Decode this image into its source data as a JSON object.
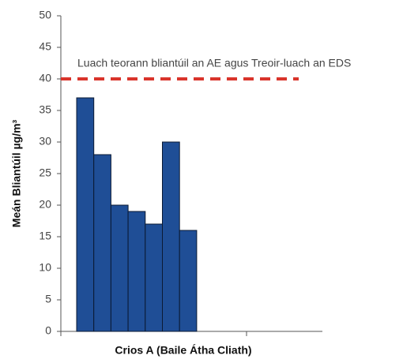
{
  "chart_data": {
    "type": "bar",
    "xlabel": "Crios A (Baile Átha Cliath)",
    "ylabel": "Meán Bliantúil µg/m³",
    "values": [
      37,
      28,
      20,
      19,
      17,
      30,
      16
    ],
    "color": "#1f4e96",
    "ylim": [
      0,
      50
    ],
    "yticks": [
      0,
      5,
      10,
      15,
      20,
      25,
      30,
      35,
      40,
      45,
      50
    ],
    "reference_line": {
      "value": 40,
      "label": "Luach teorann bliantúil an AE agus Treoir-luach an EDS",
      "color": "#d9342b"
    }
  }
}
